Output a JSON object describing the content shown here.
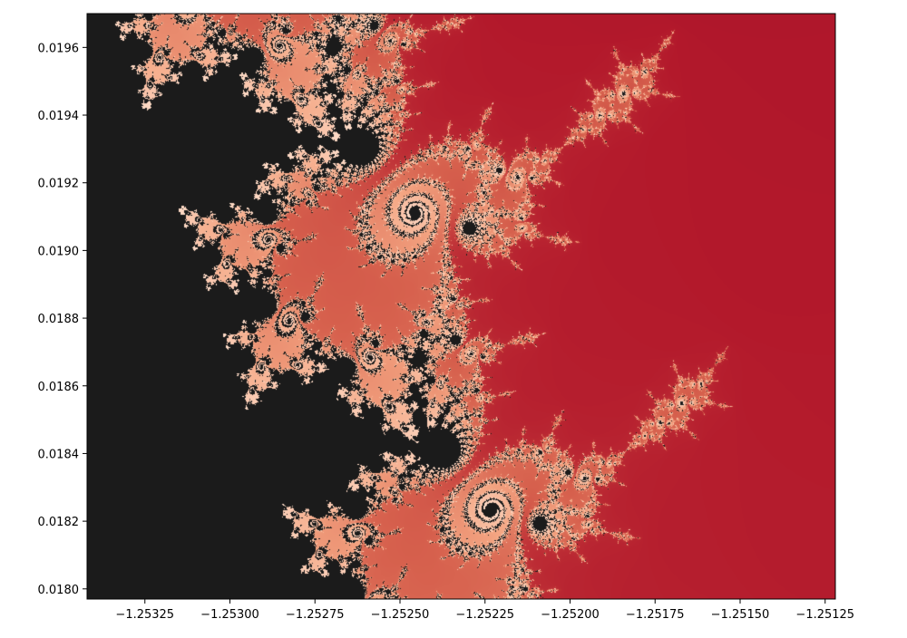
{
  "chart_data": {
    "type": "heatmap",
    "title": "",
    "xlabel": "",
    "ylabel": "",
    "xlim": [
      -1.25342,
      -1.25122
    ],
    "ylim": [
      0.01797,
      0.0197
    ],
    "x_ticks": [
      {
        "value": -1.25325,
        "label": "−1.25325"
      },
      {
        "value": -1.253,
        "label": "−1.25300"
      },
      {
        "value": -1.25275,
        "label": "−1.25275"
      },
      {
        "value": -1.2525,
        "label": "−1.25250"
      },
      {
        "value": -1.25225,
        "label": "−1.25225"
      },
      {
        "value": -1.252,
        "label": "−1.25200"
      },
      {
        "value": -1.25175,
        "label": "−1.25175"
      },
      {
        "value": -1.2515,
        "label": "−1.25150"
      },
      {
        "value": -1.25125,
        "label": "−1.25125"
      }
    ],
    "y_ticks": [
      {
        "value": 0.018,
        "label": "0.0180"
      },
      {
        "value": 0.0182,
        "label": "0.0182"
      },
      {
        "value": 0.0184,
        "label": "0.0184"
      },
      {
        "value": 0.0186,
        "label": "0.0186"
      },
      {
        "value": 0.0188,
        "label": "0.0188"
      },
      {
        "value": 0.019,
        "label": "0.0190"
      },
      {
        "value": 0.0192,
        "label": "0.0192"
      },
      {
        "value": 0.0194,
        "label": "0.0194"
      },
      {
        "value": 0.0196,
        "label": "0.0196"
      }
    ],
    "grid": false,
    "content": "Mandelbrot set escape-time rendering",
    "colors": {
      "set_interior": "#1b1b1b",
      "background_max": "#67001f",
      "mid": "#b2182b",
      "high_gradient": "#f4a582",
      "boundary": "#fddbc7"
    }
  }
}
